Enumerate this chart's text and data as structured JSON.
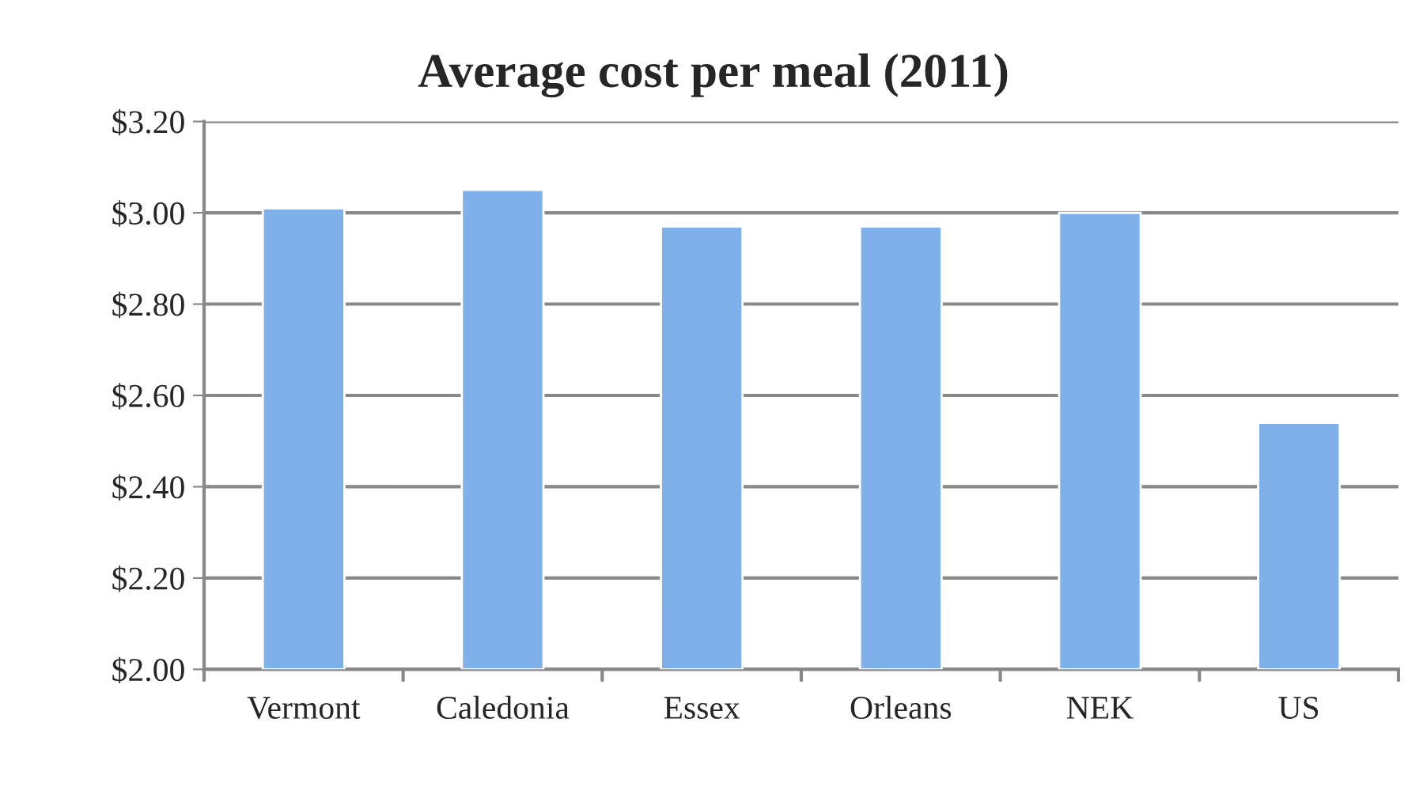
{
  "chart_data": {
    "type": "bar",
    "title": "Average cost per meal (2011)",
    "categories": [
      "Vermont",
      "Caledonia",
      "Essex",
      "Orleans",
      "NEK",
      "US"
    ],
    "values": [
      3.01,
      3.05,
      2.97,
      2.97,
      3.0,
      2.54
    ],
    "color": "#7fb0ea",
    "ylim": [
      2.0,
      3.2
    ],
    "yticks": [
      {
        "value": 2.0,
        "label": "$2.00"
      },
      {
        "value": 2.2,
        "label": "$2.20"
      },
      {
        "value": 2.4,
        "label": "$2.40"
      },
      {
        "value": 2.6,
        "label": "$2.60"
      },
      {
        "value": 2.8,
        "label": "$2.80"
      },
      {
        "value": 3.0,
        "label": "$3.00"
      },
      {
        "value": 3.2,
        "label": "$3.20"
      }
    ],
    "grid": "y"
  }
}
